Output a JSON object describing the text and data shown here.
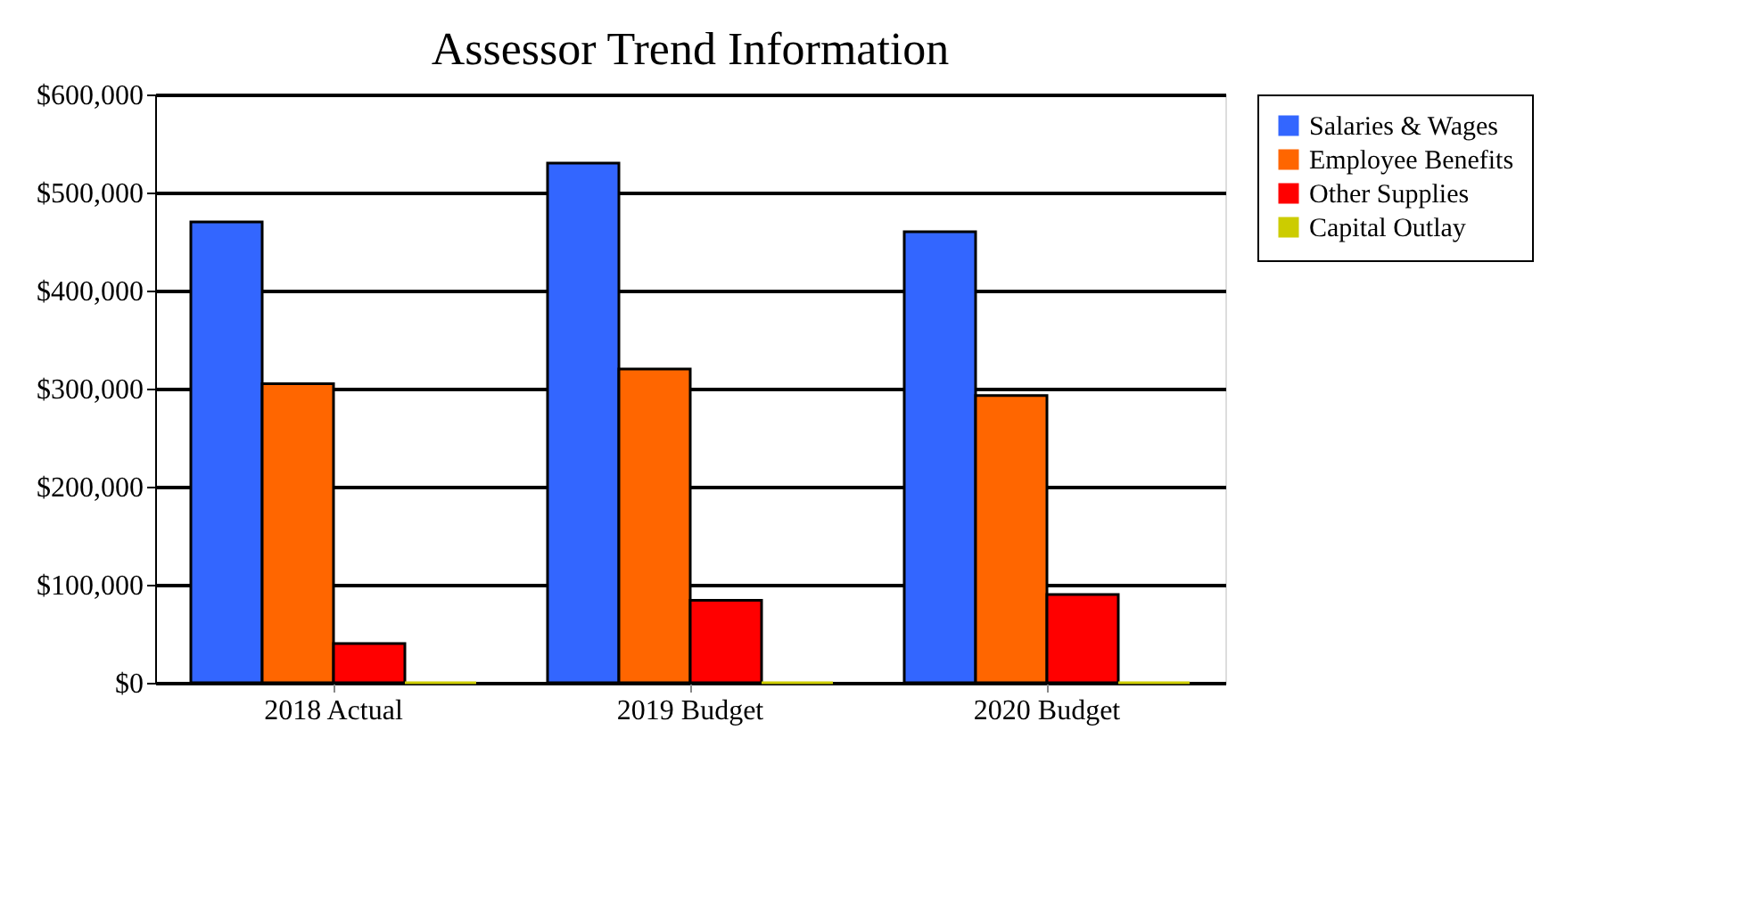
{
  "chart_data": {
    "type": "bar",
    "title": "Assessor Trend Information",
    "categories": [
      "2018 Actual",
      "2019 Budget",
      "2020 Budget"
    ],
    "series": [
      {
        "name": "Salaries & Wages",
        "color": "#3366ff",
        "values": [
          470000,
          530000,
          460000
        ]
      },
      {
        "name": "Employee Benefits",
        "color": "#ff6600",
        "values": [
          305000,
          320000,
          293000
        ]
      },
      {
        "name": "Other Supplies",
        "color": "#ff0000",
        "values": [
          40000,
          84000,
          90000
        ]
      },
      {
        "name": "Capital Outlay",
        "color": "#cccc00",
        "values": [
          0,
          0,
          0
        ]
      }
    ],
    "ylim": [
      0,
      600000
    ],
    "yticks": [
      {
        "value": 0,
        "label": "$0"
      },
      {
        "value": 100000,
        "label": "$100,000"
      },
      {
        "value": 200000,
        "label": "$200,000"
      },
      {
        "value": 300000,
        "label": "$300,000"
      },
      {
        "value": 400000,
        "label": "$400,000"
      },
      {
        "value": 500000,
        "label": "$500,000"
      },
      {
        "value": 600000,
        "label": "$600,000"
      }
    ],
    "grid": "y",
    "legend": "right"
  }
}
